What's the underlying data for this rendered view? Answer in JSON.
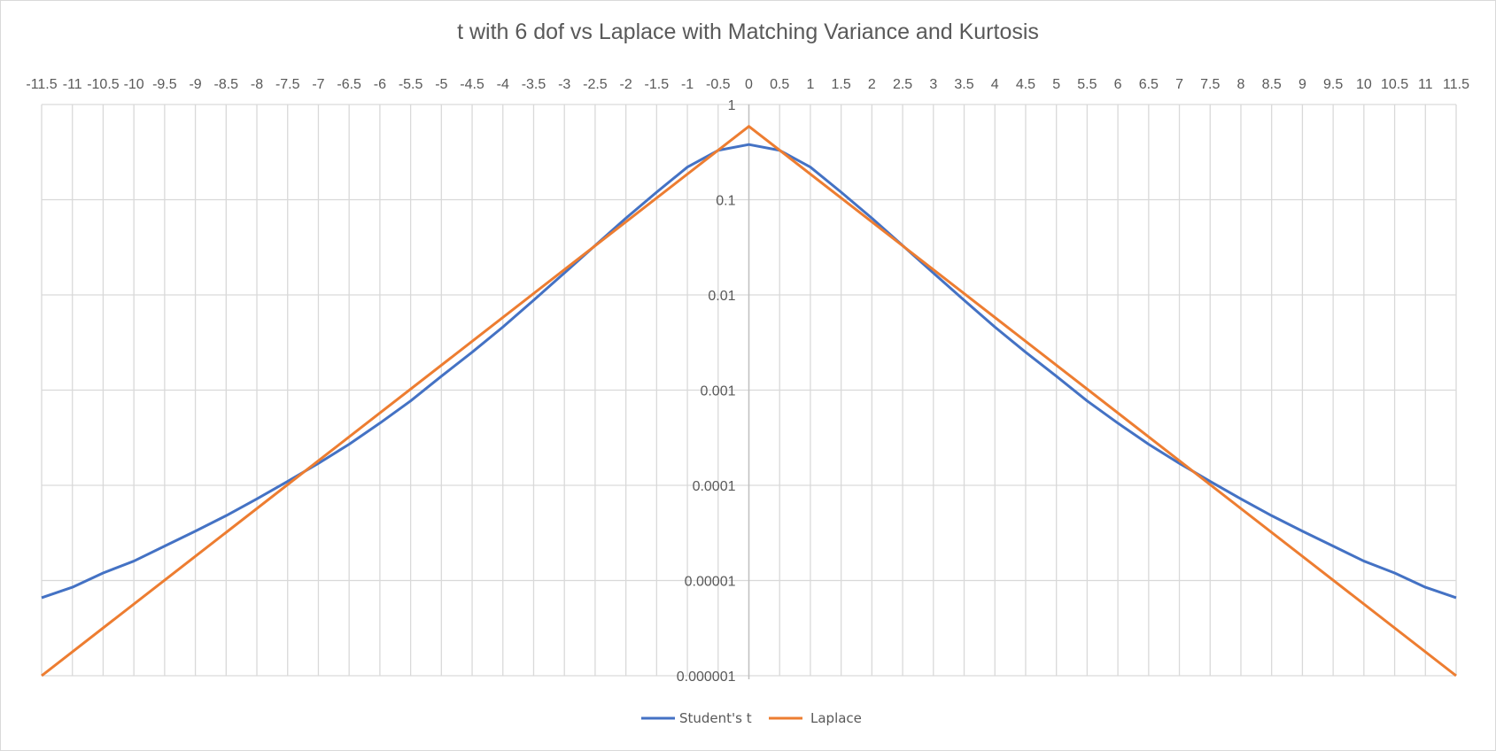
{
  "chart_data": {
    "type": "line",
    "title": "t with 6 dof vs Laplace with Matching Variance and Kurtosis",
    "xlabel": "",
    "ylabel": "",
    "xlim": [
      -11.5,
      11.5
    ],
    "x_tick_step": 0.5,
    "x_tick_labels": [
      "-11.5",
      "-11",
      "-10.5",
      "-10",
      "-9.5",
      "-9",
      "-8.5",
      "-8",
      "-7.5",
      "-7",
      "-6.5",
      "-6",
      "-5.5",
      "-5",
      "-4.5",
      "-4",
      "-3.5",
      "-3",
      "-2.5",
      "-2",
      "-1.5",
      "-1",
      "-0.5",
      "0",
      "0.5",
      "1",
      "1.5",
      "2",
      "2.5",
      "3",
      "3.5",
      "4",
      "4.5",
      "5",
      "5.5",
      "6",
      "6.5",
      "7",
      "7.5",
      "8",
      "8.5",
      "9",
      "9.5",
      "10",
      "10.5",
      "11",
      "11.5"
    ],
    "y_scale": "log",
    "ylim": [
      1e-06,
      1
    ],
    "y_tick_labels": [
      "1",
      "0.1",
      "0.01",
      "0.001",
      "0.0001",
      "0.00001",
      "0.000001"
    ],
    "grid": true,
    "legend_position": "bottom",
    "series": [
      {
        "name": "Student's t",
        "color": "#4472C4",
        "x": [
          -11.5,
          -11,
          -10.5,
          -10,
          -9.5,
          -9,
          -8.5,
          -8,
          -7.5,
          -7,
          -6.5,
          -6,
          -5.5,
          -5,
          -4.5,
          -4,
          -3.5,
          -3,
          -2.5,
          -2,
          -1.5,
          -1,
          -0.5,
          0,
          0.5,
          1,
          1.5,
          2,
          2.5,
          3,
          3.5,
          4,
          4.5,
          5,
          5.5,
          6,
          6.5,
          7,
          7.5,
          8,
          8.5,
          9,
          9.5,
          10,
          10.5,
          11,
          11.5
        ],
        "values": [
          6.6e-06,
          8.5e-06,
          1.2e-05,
          1.6e-05,
          2.3e-05,
          3.3e-05,
          4.8e-05,
          7.2e-05,
          0.00011,
          0.00017,
          0.00027,
          0.00045,
          0.00077,
          0.0014,
          0.0025,
          0.0046,
          0.0088,
          0.017,
          0.033,
          0.064,
          0.12,
          0.22,
          0.33,
          0.38,
          0.33,
          0.22,
          0.12,
          0.064,
          0.033,
          0.017,
          0.0088,
          0.0046,
          0.0025,
          0.0014,
          0.00077,
          0.00045,
          0.00027,
          0.00017,
          0.00011,
          7.2e-05,
          4.8e-05,
          3.3e-05,
          2.3e-05,
          1.6e-05,
          1.2e-05,
          8.5e-06,
          6.6e-06
        ]
      },
      {
        "name": "Laplace",
        "color": "#ED7D31",
        "x": [
          -11.5,
          0,
          11.5
        ],
        "values": [
          1e-06,
          0.59,
          1e-06
        ]
      }
    ]
  }
}
